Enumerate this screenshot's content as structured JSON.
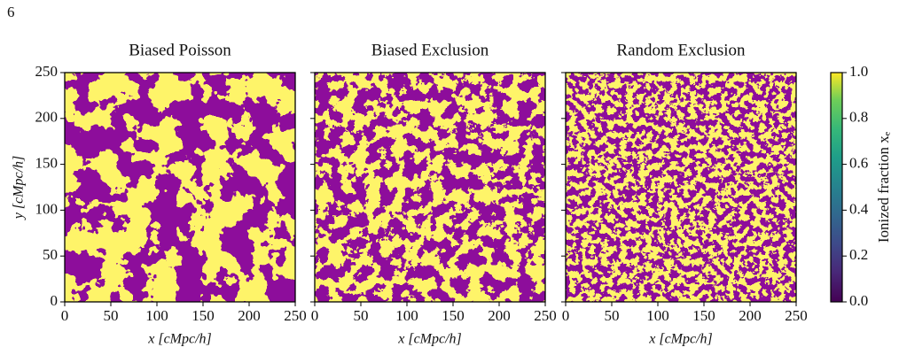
{
  "page_number": "6",
  "chart_data": [
    {
      "type": "image",
      "title": "Biased Poisson",
      "xlabel": "x [cMpc/h]",
      "ylabel": "y [cMpc/h]",
      "xlim": [
        0,
        250
      ],
      "xticks": [
        0,
        50,
        100,
        150,
        200,
        250
      ],
      "ylim": [
        0,
        250
      ],
      "yticks": [
        0,
        50,
        100,
        150,
        200,
        250
      ]
    },
    {
      "type": "image",
      "title": "Biased Exclusion",
      "xlabel": "x [cMpc/h]",
      "xlim": [
        0,
        250
      ],
      "xticks": [
        0,
        50,
        100,
        150,
        200,
        250
      ]
    },
    {
      "type": "image",
      "title": "Random Exclusion",
      "xlabel": "x [cMpc/h]",
      "xlim": [
        0,
        250
      ],
      "xticks": [
        0,
        50,
        100,
        150,
        200,
        250
      ]
    }
  ],
  "colorbar": {
    "label": "Ionized fraction xₑ",
    "colormap": "viridis",
    "lim": [
      0,
      1
    ],
    "ticks": [
      {
        "value": 0,
        "label": "0.0"
      },
      {
        "value": 0.2,
        "label": "0.2"
      },
      {
        "value": 0.4,
        "label": "0.4"
      },
      {
        "value": 0.6,
        "label": "0.6"
      },
      {
        "value": 0.8,
        "label": "0.8"
      },
      {
        "value": 1,
        "label": "1.0"
      }
    ]
  }
}
